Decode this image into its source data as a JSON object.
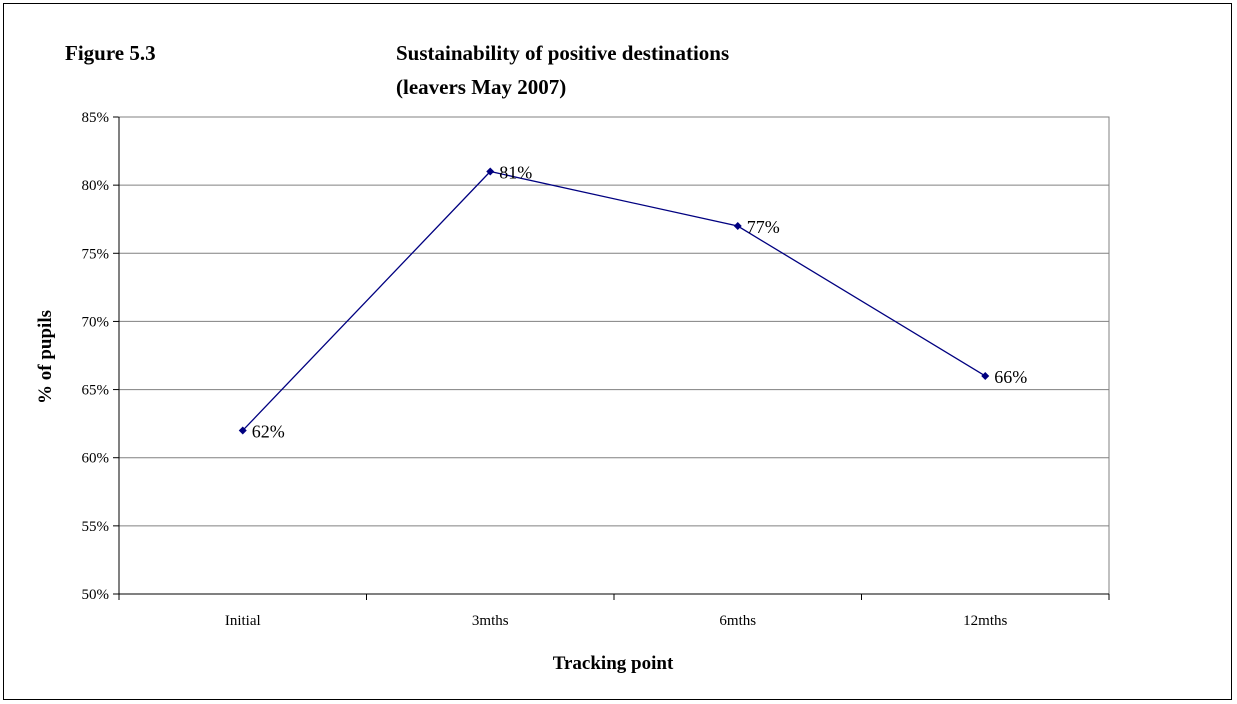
{
  "figure_label": "Figure 5.3",
  "chart_data": {
    "type": "line",
    "title_lines": [
      "Sustainability of positive destinations",
      "(leavers May 2007)"
    ],
    "xlabel": "Tracking point",
    "ylabel": "% of pupils",
    "categories": [
      "Initial",
      "3mths",
      "6mths",
      "12mths"
    ],
    "series": [
      {
        "values": [
          62,
          81,
          77,
          66
        ],
        "labels": [
          "62%",
          "81%",
          "77%",
          "66%"
        ],
        "color": "#000080"
      }
    ],
    "ylim": [
      50,
      85
    ],
    "ytick_step": 5,
    "ytick_suffix": "%",
    "grid": "horizontal",
    "legend": "none"
  }
}
